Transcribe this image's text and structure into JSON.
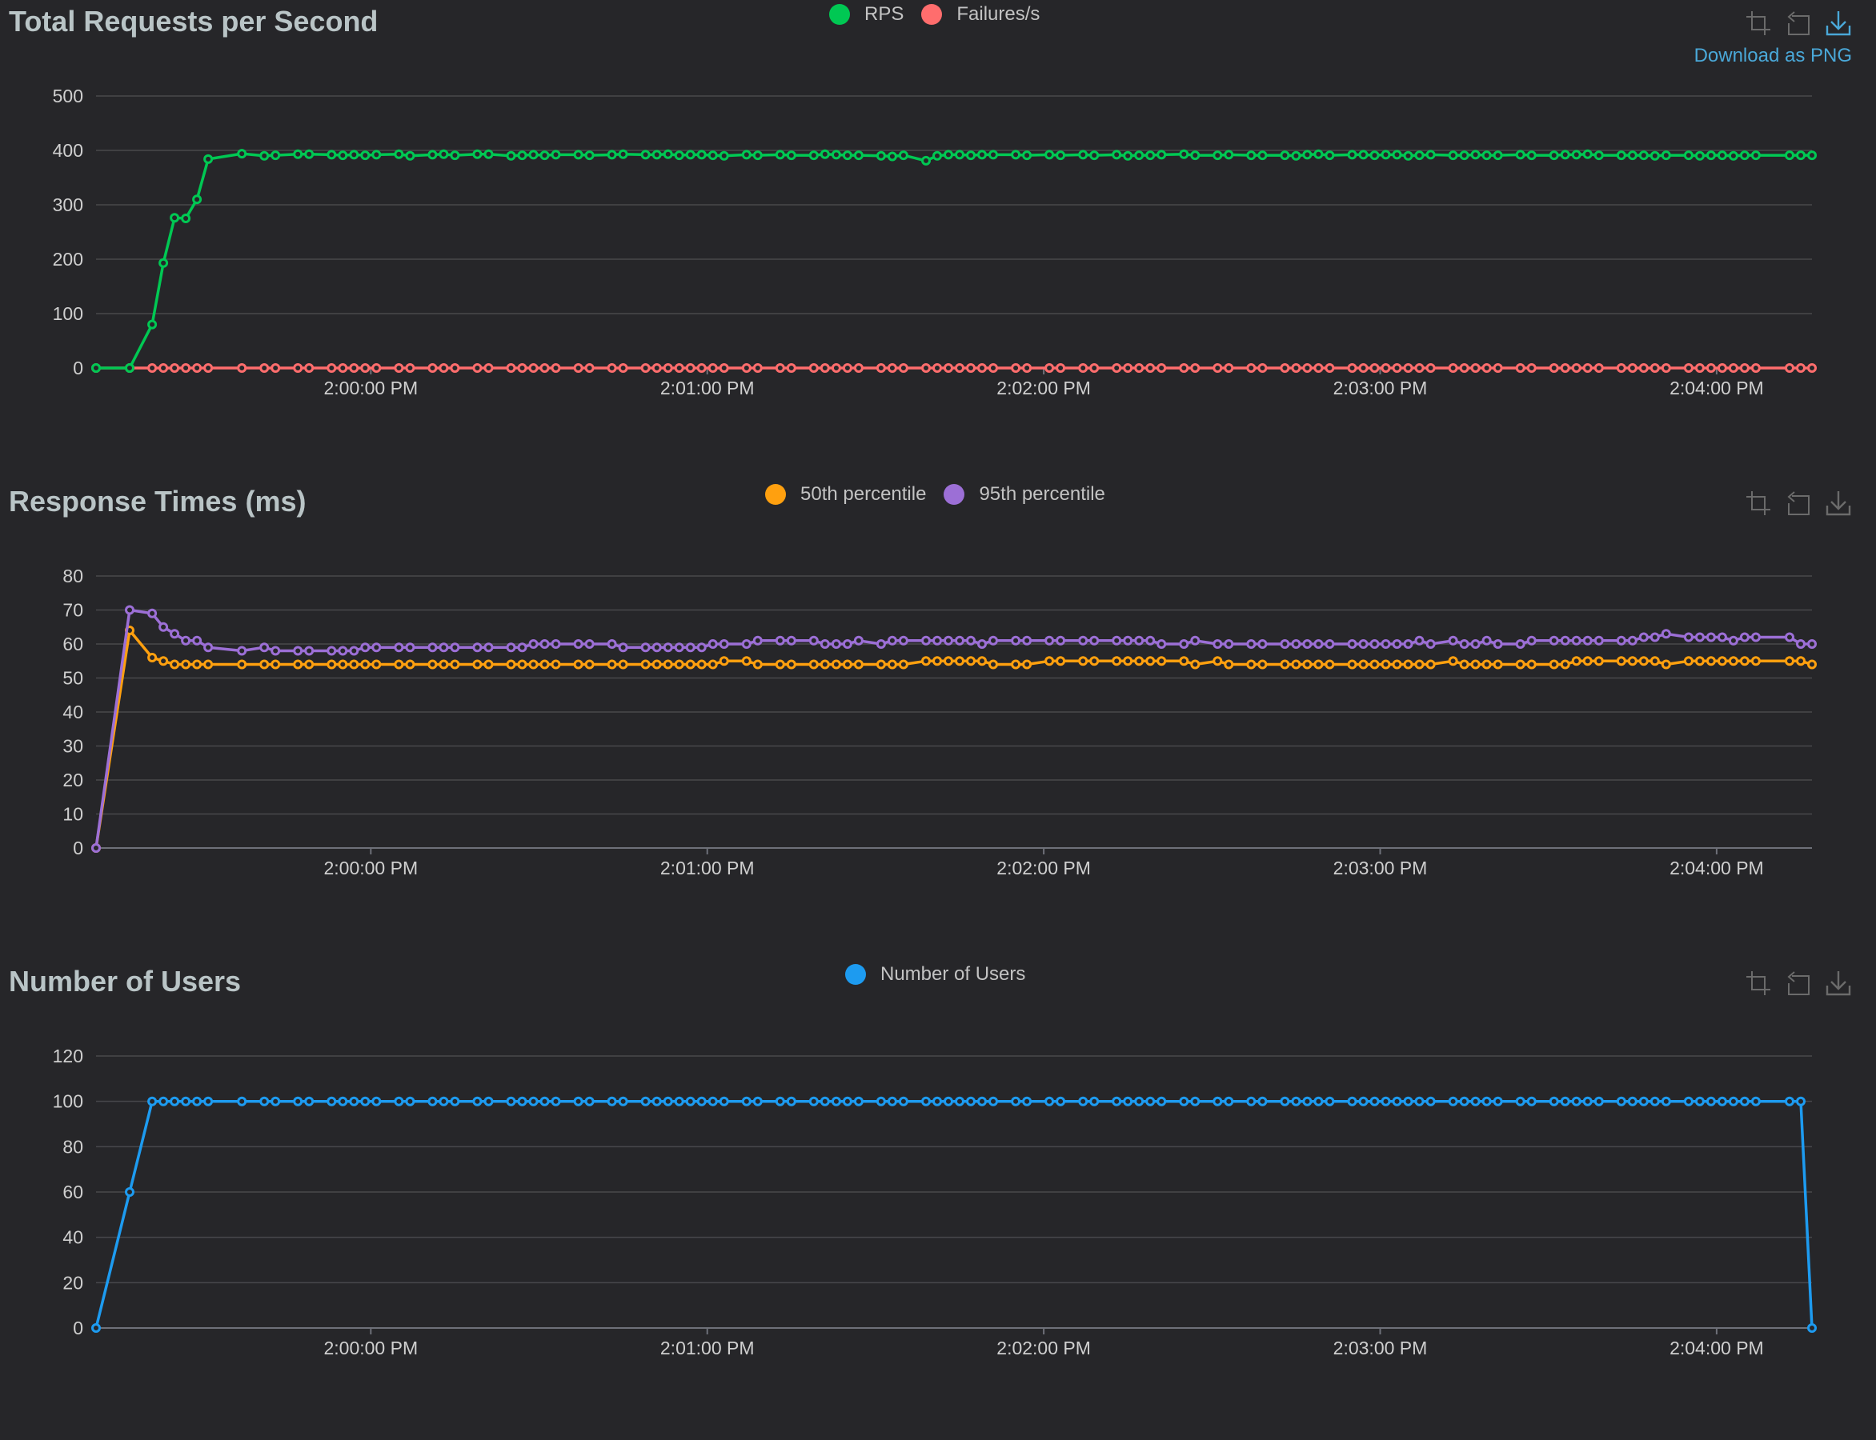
{
  "toolbox": {
    "zoom_icon": "zoom-icon",
    "restore_icon": "restore-icon",
    "download_icon": "download-icon",
    "download_label": "Download as PNG"
  },
  "chart_data": [
    {
      "type": "line",
      "title": "Total Requests per Second",
      "x": [
        "1:59:11 PM",
        "1:59:17 PM",
        "1:59:21 PM",
        "1:59:23 PM",
        "1:59:25 PM",
        "1:59:27 PM",
        "1:59:29 PM",
        "1:59:31 PM",
        "1:59:37 PM",
        "1:59:41 PM",
        "1:59:43 PM",
        "1:59:47 PM",
        "1:59:49 PM",
        "1:59:53 PM",
        "1:59:55 PM",
        "1:59:57 PM",
        "1:59:59 PM",
        "2:00:01 PM",
        "2:00:05 PM",
        "2:00:07 PM",
        "2:00:11 PM",
        "2:00:13 PM",
        "2:00:15 PM",
        "2:00:19 PM",
        "2:00:21 PM",
        "2:00:25 PM",
        "2:00:27 PM",
        "2:00:29 PM",
        "2:00:31 PM",
        "2:00:33 PM",
        "2:00:37 PM",
        "2:00:39 PM",
        "2:00:43 PM",
        "2:00:45 PM",
        "2:00:49 PM",
        "2:00:51 PM",
        "2:00:53 PM",
        "2:00:55 PM",
        "2:00:57 PM",
        "2:00:59 PM",
        "2:01:01 PM",
        "2:01:03 PM",
        "2:01:07 PM",
        "2:01:09 PM",
        "2:01:13 PM",
        "2:01:15 PM",
        "2:01:19 PM",
        "2:01:21 PM",
        "2:01:23 PM",
        "2:01:25 PM",
        "2:01:27 PM",
        "2:01:31 PM",
        "2:01:33 PM",
        "2:01:35 PM",
        "2:01:39 PM",
        "2:01:41 PM",
        "2:01:43 PM",
        "2:01:45 PM",
        "2:01:47 PM",
        "2:01:49 PM",
        "2:01:51 PM",
        "2:01:55 PM",
        "2:01:57 PM",
        "2:02:01 PM",
        "2:02:03 PM",
        "2:02:07 PM",
        "2:02:09 PM",
        "2:02:13 PM",
        "2:02:15 PM",
        "2:02:17 PM",
        "2:02:19 PM",
        "2:02:21 PM",
        "2:02:25 PM",
        "2:02:27 PM",
        "2:02:31 PM",
        "2:02:33 PM",
        "2:02:37 PM",
        "2:02:39 PM",
        "2:02:43 PM",
        "2:02:45 PM",
        "2:02:47 PM",
        "2:02:49 PM",
        "2:02:51 PM",
        "2:02:55 PM",
        "2:02:57 PM",
        "2:02:59 PM",
        "2:03:01 PM",
        "2:03:03 PM",
        "2:03:05 PM",
        "2:03:07 PM",
        "2:03:09 PM",
        "2:03:13 PM",
        "2:03:15 PM",
        "2:03:17 PM",
        "2:03:19 PM",
        "2:03:21 PM",
        "2:03:25 PM",
        "2:03:27 PM",
        "2:03:31 PM",
        "2:03:33 PM",
        "2:03:35 PM",
        "2:03:37 PM",
        "2:03:39 PM",
        "2:03:43 PM",
        "2:03:45 PM",
        "2:03:47 PM",
        "2:03:49 PM",
        "2:03:51 PM",
        "2:03:55 PM",
        "2:03:57 PM",
        "2:03:59 PM",
        "2:04:01 PM",
        "2:04:03 PM",
        "2:04:05 PM",
        "2:04:07 PM",
        "2:04:13 PM",
        "2:04:15 PM",
        "2:04:17 PM"
      ],
      "xlim": [
        "1:59:11 PM",
        "2:04:17 PM"
      ],
      "x_ticks": [
        "2:00:00 PM",
        "2:01:00 PM",
        "2:02:00 PM",
        "2:03:00 PM",
        "2:04:00 PM"
      ],
      "y_ticks": [
        0,
        100,
        200,
        300,
        400,
        500
      ],
      "ylim": [
        0,
        500
      ],
      "legend_position": "top-center",
      "series": [
        {
          "name": "RPS",
          "color": "#00c853",
          "values": [
            0,
            0,
            80,
            193,
            276,
            275,
            310,
            384,
            394,
            390,
            391,
            393,
            393,
            392,
            391,
            392,
            391,
            392,
            393,
            390,
            392,
            393,
            391,
            393,
            393,
            390,
            391,
            392,
            391,
            392,
            392,
            391,
            392,
            393,
            392,
            392,
            393,
            391,
            392,
            392,
            391,
            390,
            392,
            391,
            392,
            391,
            391,
            393,
            392,
            391,
            391,
            390,
            389,
            391,
            381,
            390,
            392,
            392,
            391,
            392,
            392,
            392,
            391,
            392,
            391,
            392,
            391,
            392,
            390,
            391,
            391,
            392,
            393,
            391,
            391,
            392,
            391,
            391,
            391,
            390,
            392,
            393,
            391,
            392,
            392,
            391,
            392,
            392,
            390,
            391,
            392,
            391,
            391,
            392,
            391,
            391,
            392,
            391,
            391,
            392,
            392,
            393,
            391,
            391,
            391,
            391,
            390,
            391,
            391,
            390,
            391,
            391,
            390,
            391,
            391,
            391,
            391,
            391
          ]
        },
        {
          "name": "Failures/s",
          "color": "#ff6d6d",
          "values": [
            0,
            0,
            0,
            0,
            0,
            0,
            0,
            0,
            0,
            0,
            0,
            0,
            0,
            0,
            0,
            0,
            0,
            0,
            0,
            0,
            0,
            0,
            0,
            0,
            0,
            0,
            0,
            0,
            0,
            0,
            0,
            0,
            0,
            0,
            0,
            0,
            0,
            0,
            0,
            0,
            0,
            0,
            0,
            0,
            0,
            0,
            0,
            0,
            0,
            0,
            0,
            0,
            0,
            0,
            0,
            0,
            0,
            0,
            0,
            0,
            0,
            0,
            0,
            0,
            0,
            0,
            0,
            0,
            0,
            0,
            0,
            0,
            0,
            0,
            0,
            0,
            0,
            0,
            0,
            0,
            0,
            0,
            0,
            0,
            0,
            0,
            0,
            0,
            0,
            0,
            0,
            0,
            0,
            0,
            0,
            0,
            0,
            0,
            0,
            0,
            0,
            0,
            0,
            0,
            0,
            0,
            0,
            0,
            0,
            0,
            0,
            0,
            0,
            0,
            0,
            0,
            0,
            0
          ]
        }
      ]
    },
    {
      "type": "line",
      "title": "Response Times (ms)",
      "x": [
        "1:59:11 PM",
        "1:59:17 PM",
        "1:59:21 PM",
        "1:59:23 PM",
        "1:59:25 PM",
        "1:59:27 PM",
        "1:59:29 PM",
        "1:59:31 PM",
        "1:59:37 PM",
        "1:59:41 PM",
        "1:59:43 PM",
        "1:59:47 PM",
        "1:59:49 PM",
        "1:59:53 PM",
        "1:59:55 PM",
        "1:59:57 PM",
        "1:59:59 PM",
        "2:00:01 PM",
        "2:00:05 PM",
        "2:00:07 PM",
        "2:00:11 PM",
        "2:00:13 PM",
        "2:00:15 PM",
        "2:00:19 PM",
        "2:00:21 PM",
        "2:00:25 PM",
        "2:00:27 PM",
        "2:00:29 PM",
        "2:00:31 PM",
        "2:00:33 PM",
        "2:00:37 PM",
        "2:00:39 PM",
        "2:00:43 PM",
        "2:00:45 PM",
        "2:00:49 PM",
        "2:00:51 PM",
        "2:00:53 PM",
        "2:00:55 PM",
        "2:00:57 PM",
        "2:00:59 PM",
        "2:01:01 PM",
        "2:01:03 PM",
        "2:01:07 PM",
        "2:01:09 PM",
        "2:01:13 PM",
        "2:01:15 PM",
        "2:01:19 PM",
        "2:01:21 PM",
        "2:01:23 PM",
        "2:01:25 PM",
        "2:01:27 PM",
        "2:01:31 PM",
        "2:01:33 PM",
        "2:01:35 PM",
        "2:01:39 PM",
        "2:01:41 PM",
        "2:01:43 PM",
        "2:01:45 PM",
        "2:01:47 PM",
        "2:01:49 PM",
        "2:01:51 PM",
        "2:01:55 PM",
        "2:01:57 PM",
        "2:02:01 PM",
        "2:02:03 PM",
        "2:02:07 PM",
        "2:02:09 PM",
        "2:02:13 PM",
        "2:02:15 PM",
        "2:02:17 PM",
        "2:02:19 PM",
        "2:02:21 PM",
        "2:02:25 PM",
        "2:02:27 PM",
        "2:02:31 PM",
        "2:02:33 PM",
        "2:02:37 PM",
        "2:02:39 PM",
        "2:02:43 PM",
        "2:02:45 PM",
        "2:02:47 PM",
        "2:02:49 PM",
        "2:02:51 PM",
        "2:02:55 PM",
        "2:02:57 PM",
        "2:02:59 PM",
        "2:03:01 PM",
        "2:03:03 PM",
        "2:03:05 PM",
        "2:03:07 PM",
        "2:03:09 PM",
        "2:03:13 PM",
        "2:03:15 PM",
        "2:03:17 PM",
        "2:03:19 PM",
        "2:03:21 PM",
        "2:03:25 PM",
        "2:03:27 PM",
        "2:03:31 PM",
        "2:03:33 PM",
        "2:03:35 PM",
        "2:03:37 PM",
        "2:03:39 PM",
        "2:03:43 PM",
        "2:03:45 PM",
        "2:03:47 PM",
        "2:03:49 PM",
        "2:03:51 PM",
        "2:03:55 PM",
        "2:03:57 PM",
        "2:03:59 PM",
        "2:04:01 PM",
        "2:04:03 PM",
        "2:04:05 PM",
        "2:04:07 PM",
        "2:04:13 PM",
        "2:04:15 PM",
        "2:04:17 PM"
      ],
      "xlim": [
        "1:59:11 PM",
        "2:04:17 PM"
      ],
      "x_ticks": [
        "2:00:00 PM",
        "2:01:00 PM",
        "2:02:00 PM",
        "2:03:00 PM",
        "2:04:00 PM"
      ],
      "y_ticks": [
        0,
        10,
        20,
        30,
        40,
        50,
        60,
        70,
        80
      ],
      "ylim": [
        0,
        80
      ],
      "legend_position": "top-center",
      "series": [
        {
          "name": "50th percentile",
          "color": "#ffa00f",
          "values": [
            0,
            64,
            56,
            55,
            54,
            54,
            54,
            54,
            54,
            54,
            54,
            54,
            54,
            54,
            54,
            54,
            54,
            54,
            54,
            54,
            54,
            54,
            54,
            54,
            54,
            54,
            54,
            54,
            54,
            54,
            54,
            54,
            54,
            54,
            54,
            54,
            54,
            54,
            54,
            54,
            54,
            55,
            55,
            54,
            54,
            54,
            54,
            54,
            54,
            54,
            54,
            54,
            54,
            54,
            55,
            55,
            55,
            55,
            55,
            55,
            54,
            54,
            54,
            55,
            55,
            55,
            55,
            55,
            55,
            55,
            55,
            55,
            55,
            54,
            55,
            54,
            54,
            54,
            54,
            54,
            54,
            54,
            54,
            54,
            54,
            54,
            54,
            54,
            54,
            54,
            54,
            55,
            54,
            54,
            54,
            54,
            54,
            54,
            54,
            54,
            55,
            55,
            55,
            55,
            55,
            55,
            55,
            54,
            55,
            55,
            55,
            55,
            55,
            55,
            55,
            55,
            55,
            54
          ]
        },
        {
          "name": "95th percentile",
          "color": "#9c6fd6",
          "values": [
            0,
            70,
            69,
            65,
            63,
            61,
            61,
            59,
            58,
            59,
            58,
            58,
            58,
            58,
            58,
            58,
            59,
            59,
            59,
            59,
            59,
            59,
            59,
            59,
            59,
            59,
            59,
            60,
            60,
            60,
            60,
            60,
            60,
            59,
            59,
            59,
            59,
            59,
            59,
            59,
            60,
            60,
            60,
            61,
            61,
            61,
            61,
            60,
            60,
            60,
            61,
            60,
            61,
            61,
            61,
            61,
            61,
            61,
            61,
            60,
            61,
            61,
            61,
            61,
            61,
            61,
            61,
            61,
            61,
            61,
            61,
            60,
            60,
            61,
            60,
            60,
            60,
            60,
            60,
            60,
            60,
            60,
            60,
            60,
            60,
            60,
            60,
            60,
            60,
            61,
            60,
            61,
            60,
            60,
            61,
            60,
            60,
            61,
            61,
            61,
            61,
            61,
            61,
            61,
            61,
            62,
            62,
            63,
            62,
            62,
            62,
            62,
            61,
            62,
            62,
            62,
            60,
            60
          ]
        }
      ]
    },
    {
      "type": "line",
      "title": "Number of Users",
      "x": [
        "1:59:11 PM",
        "1:59:17 PM",
        "1:59:21 PM",
        "1:59:23 PM",
        "1:59:25 PM",
        "1:59:27 PM",
        "1:59:29 PM",
        "1:59:31 PM",
        "1:59:37 PM",
        "1:59:41 PM",
        "1:59:43 PM",
        "1:59:47 PM",
        "1:59:49 PM",
        "1:59:53 PM",
        "1:59:55 PM",
        "1:59:57 PM",
        "1:59:59 PM",
        "2:00:01 PM",
        "2:00:05 PM",
        "2:00:07 PM",
        "2:00:11 PM",
        "2:00:13 PM",
        "2:00:15 PM",
        "2:00:19 PM",
        "2:00:21 PM",
        "2:00:25 PM",
        "2:00:27 PM",
        "2:00:29 PM",
        "2:00:31 PM",
        "2:00:33 PM",
        "2:00:37 PM",
        "2:00:39 PM",
        "2:00:43 PM",
        "2:00:45 PM",
        "2:00:49 PM",
        "2:00:51 PM",
        "2:00:53 PM",
        "2:00:55 PM",
        "2:00:57 PM",
        "2:00:59 PM",
        "2:01:01 PM",
        "2:01:03 PM",
        "2:01:07 PM",
        "2:01:09 PM",
        "2:01:13 PM",
        "2:01:15 PM",
        "2:01:19 PM",
        "2:01:21 PM",
        "2:01:23 PM",
        "2:01:25 PM",
        "2:01:27 PM",
        "2:01:31 PM",
        "2:01:33 PM",
        "2:01:35 PM",
        "2:01:39 PM",
        "2:01:41 PM",
        "2:01:43 PM",
        "2:01:45 PM",
        "2:01:47 PM",
        "2:01:49 PM",
        "2:01:51 PM",
        "2:01:55 PM",
        "2:01:57 PM",
        "2:02:01 PM",
        "2:02:03 PM",
        "2:02:07 PM",
        "2:02:09 PM",
        "2:02:13 PM",
        "2:02:15 PM",
        "2:02:17 PM",
        "2:02:19 PM",
        "2:02:21 PM",
        "2:02:25 PM",
        "2:02:27 PM",
        "2:02:31 PM",
        "2:02:33 PM",
        "2:02:37 PM",
        "2:02:39 PM",
        "2:02:43 PM",
        "2:02:45 PM",
        "2:02:47 PM",
        "2:02:49 PM",
        "2:02:51 PM",
        "2:02:55 PM",
        "2:02:57 PM",
        "2:02:59 PM",
        "2:03:01 PM",
        "2:03:03 PM",
        "2:03:05 PM",
        "2:03:07 PM",
        "2:03:09 PM",
        "2:03:13 PM",
        "2:03:15 PM",
        "2:03:17 PM",
        "2:03:19 PM",
        "2:03:21 PM",
        "2:03:25 PM",
        "2:03:27 PM",
        "2:03:31 PM",
        "2:03:33 PM",
        "2:03:35 PM",
        "2:03:37 PM",
        "2:03:39 PM",
        "2:03:43 PM",
        "2:03:45 PM",
        "2:03:47 PM",
        "2:03:49 PM",
        "2:03:51 PM",
        "2:03:55 PM",
        "2:03:57 PM",
        "2:03:59 PM",
        "2:04:01 PM",
        "2:04:03 PM",
        "2:04:05 PM",
        "2:04:07 PM",
        "2:04:13 PM",
        "2:04:15 PM",
        "2:04:17 PM"
      ],
      "xlim": [
        "1:59:11 PM",
        "2:04:17 PM"
      ],
      "x_ticks": [
        "2:00:00 PM",
        "2:01:00 PM",
        "2:02:00 PM",
        "2:03:00 PM",
        "2:04:00 PM"
      ],
      "y_ticks": [
        0,
        20,
        40,
        60,
        80,
        100,
        120
      ],
      "ylim": [
        0,
        120
      ],
      "legend_position": "top-center",
      "series": [
        {
          "name": "Number of Users",
          "color": "#1d9bf0",
          "values": [
            0,
            60,
            100,
            100,
            100,
            100,
            100,
            100,
            100,
            100,
            100,
            100,
            100,
            100,
            100,
            100,
            100,
            100,
            100,
            100,
            100,
            100,
            100,
            100,
            100,
            100,
            100,
            100,
            100,
            100,
            100,
            100,
            100,
            100,
            100,
            100,
            100,
            100,
            100,
            100,
            100,
            100,
            100,
            100,
            100,
            100,
            100,
            100,
            100,
            100,
            100,
            100,
            100,
            100,
            100,
            100,
            100,
            100,
            100,
            100,
            100,
            100,
            100,
            100,
            100,
            100,
            100,
            100,
            100,
            100,
            100,
            100,
            100,
            100,
            100,
            100,
            100,
            100,
            100,
            100,
            100,
            100,
            100,
            100,
            100,
            100,
            100,
            100,
            100,
            100,
            100,
            100,
            100,
            100,
            100,
            100,
            100,
            100,
            100,
            100,
            100,
            100,
            100,
            100,
            100,
            100,
            100,
            100,
            100,
            100,
            100,
            100,
            100,
            100,
            100,
            100,
            100,
            0
          ]
        }
      ]
    }
  ]
}
